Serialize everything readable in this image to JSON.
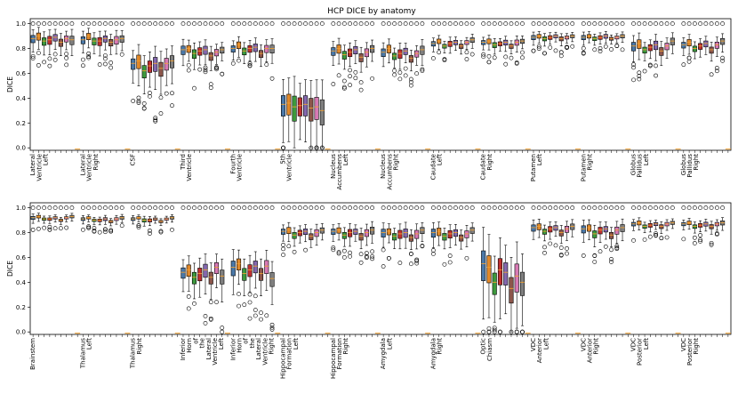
{
  "chart_data": {
    "type": "box",
    "title": "HCP DICE by anatomy",
    "ylabel": "DICE",
    "ylim": [
      -0.02,
      1.04
    ],
    "yticks": [
      "0.0",
      "0.2",
      "0.4",
      "0.6",
      "0.8",
      "1.0"
    ],
    "series_colors": [
      "#4a78a8",
      "#e0882a",
      "#3d9a3d",
      "#c03030",
      "#8468ae",
      "#8c564b",
      "#d77ab4",
      "#7f7f7f"
    ],
    "panels": [
      {
        "categories": [
          {
            "label": "Lateral Ventricle Left",
            "medians": [
              0.88,
              0.9,
              0.86,
              0.87,
              0.89,
              0.85,
              0.88,
              0.87
            ],
            "spread": 0.04
          },
          {
            "label": "Lateral Ventricle Right",
            "medians": [
              0.87,
              0.9,
              0.86,
              0.86,
              0.88,
              0.85,
              0.87,
              0.88
            ],
            "spread": 0.04
          },
          {
            "label": "CSF",
            "medians": [
              0.68,
              0.7,
              0.62,
              0.66,
              0.68,
              0.64,
              0.68,
              0.7
            ],
            "spread": 0.07
          },
          {
            "label": "Third Ventricle",
            "medians": [
              0.79,
              0.8,
              0.76,
              0.78,
              0.79,
              0.74,
              0.77,
              0.79
            ],
            "spread": 0.04
          },
          {
            "label": "Fourth Ventricle",
            "medians": [
              0.8,
              0.83,
              0.78,
              0.8,
              0.81,
              0.76,
              0.8,
              0.8
            ],
            "spread": 0.04
          },
          {
            "label": "5th Ventricle",
            "medians": [
              0.35,
              0.36,
              0.33,
              0.34,
              0.35,
              0.32,
              0.33,
              0.3
            ],
            "spread": 0.12
          },
          {
            "label": "Nucleus Accumbens Left",
            "medians": [
              0.78,
              0.8,
              0.75,
              0.77,
              0.79,
              0.73,
              0.77,
              0.8
            ],
            "spread": 0.04
          },
          {
            "label": "Nucleus Accumbens Right",
            "medians": [
              0.77,
              0.8,
              0.74,
              0.76,
              0.78,
              0.72,
              0.76,
              0.79
            ],
            "spread": 0.04
          },
          {
            "label": "Caudate Left",
            "medians": [
              0.84,
              0.86,
              0.82,
              0.84,
              0.85,
              0.82,
              0.85,
              0.87
            ],
            "spread": 0.025
          },
          {
            "label": "Caudate Right",
            "medians": [
              0.85,
              0.86,
              0.83,
              0.84,
              0.85,
              0.82,
              0.85,
              0.86
            ],
            "spread": 0.025
          },
          {
            "label": "Putamen Left",
            "medians": [
              0.89,
              0.9,
              0.88,
              0.89,
              0.9,
              0.88,
              0.89,
              0.9
            ],
            "spread": 0.02
          },
          {
            "label": "Putamen Right",
            "medians": [
              0.89,
              0.9,
              0.88,
              0.89,
              0.9,
              0.88,
              0.89,
              0.9
            ],
            "spread": 0.02
          },
          {
            "label": "Globus Pallidus Left",
            "medians": [
              0.82,
              0.84,
              0.79,
              0.81,
              0.83,
              0.78,
              0.82,
              0.86
            ],
            "spread": 0.04
          },
          {
            "label": "Globus Pallidus Right",
            "medians": [
              0.83,
              0.85,
              0.8,
              0.82,
              0.84,
              0.79,
              0.83,
              0.86
            ],
            "spread": 0.035
          }
        ]
      },
      {
        "categories": [
          {
            "label": "Brainstem",
            "medians": [
              0.92,
              0.93,
              0.91,
              0.91,
              0.92,
              0.9,
              0.92,
              0.93
            ],
            "spread": 0.015
          },
          {
            "label": "Thalamus Left",
            "medians": [
              0.91,
              0.92,
              0.9,
              0.9,
              0.91,
              0.89,
              0.91,
              0.92
            ],
            "spread": 0.015
          },
          {
            "label": "Thalamus Right",
            "medians": [
              0.91,
              0.92,
              0.9,
              0.9,
              0.91,
              0.89,
              0.91,
              0.92
            ],
            "spread": 0.015
          },
          {
            "label": "Inferior Horn of the Lateral Ventricle Left",
            "medians": [
              0.48,
              0.5,
              0.44,
              0.47,
              0.5,
              0.44,
              0.52,
              0.45
            ],
            "spread": 0.07
          },
          {
            "label": "Inferior Horn of the Lateral Ventricle Right",
            "medians": [
              0.52,
              0.55,
              0.47,
              0.5,
              0.53,
              0.47,
              0.53,
              0.43
            ],
            "spread": 0.07
          },
          {
            "label": "Hippocampal Formation Left",
            "medians": [
              0.81,
              0.82,
              0.78,
              0.8,
              0.81,
              0.77,
              0.8,
              0.82
            ],
            "spread": 0.035
          },
          {
            "label": "Hippocampal Formation Right",
            "medians": [
              0.81,
              0.82,
              0.78,
              0.8,
              0.81,
              0.77,
              0.8,
              0.82
            ],
            "spread": 0.035
          },
          {
            "label": "Amygdala Left",
            "medians": [
              0.8,
              0.81,
              0.77,
              0.79,
              0.8,
              0.76,
              0.79,
              0.82
            ],
            "spread": 0.04
          },
          {
            "label": "Amygdala Right",
            "medians": [
              0.8,
              0.81,
              0.77,
              0.79,
              0.8,
              0.76,
              0.79,
              0.82
            ],
            "spread": 0.04
          },
          {
            "label": "Optic Chiasm",
            "medians": [
              0.55,
              0.52,
              0.4,
              0.5,
              0.48,
              0.35,
              0.45,
              0.4
            ],
            "spread": 0.14
          },
          {
            "label": "VDC Anterior Left",
            "medians": [
              0.84,
              0.85,
              0.81,
              0.83,
              0.84,
              0.8,
              0.83,
              0.85
            ],
            "spread": 0.03
          },
          {
            "label": "VDC Anterior Right",
            "medians": [
              0.83,
              0.84,
              0.79,
              0.82,
              0.83,
              0.78,
              0.82,
              0.84
            ],
            "spread": 0.035
          },
          {
            "label": "VDC Posterior Left",
            "medians": [
              0.87,
              0.88,
              0.85,
              0.86,
              0.87,
              0.85,
              0.87,
              0.88
            ],
            "spread": 0.02
          },
          {
            "label": "VDC Posterior Right",
            "medians": [
              0.87,
              0.88,
              0.85,
              0.86,
              0.87,
              0.85,
              0.87,
              0.88
            ],
            "spread": 0.02
          }
        ]
      }
    ]
  }
}
